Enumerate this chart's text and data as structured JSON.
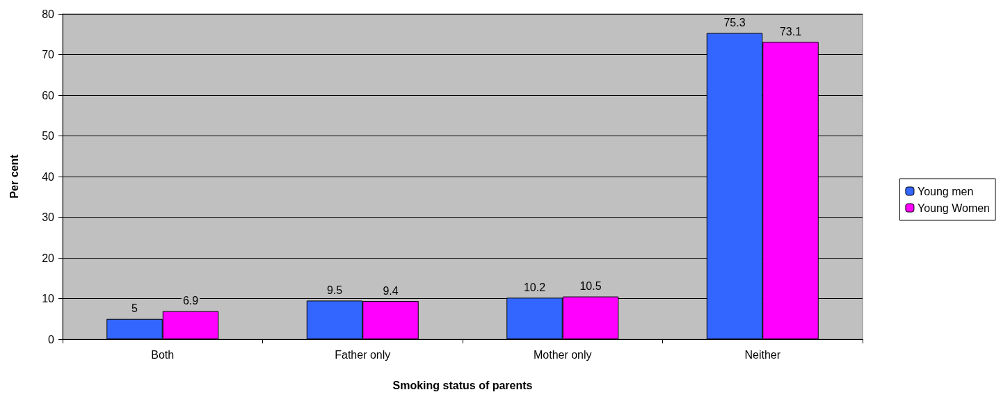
{
  "chart_data": {
    "type": "bar",
    "xlabel": "Smoking status of parents",
    "ylabel": "Per cent",
    "categories": [
      "Both",
      "Father only",
      "Mother only",
      "Neither"
    ],
    "series": [
      {
        "name": "Young men",
        "color": "#3366ff",
        "values": [
          5,
          9.5,
          10.2,
          75.3
        ]
      },
      {
        "name": "Young Women",
        "color": "#ff00ff",
        "values": [
          6.9,
          9.4,
          10.5,
          73.1
        ]
      }
    ],
    "ylim": [
      0,
      80
    ],
    "yticks": [
      0,
      10,
      20,
      30,
      40,
      50,
      60,
      70,
      80
    ],
    "grid": "y",
    "legend": "right",
    "data_labels": true
  }
}
